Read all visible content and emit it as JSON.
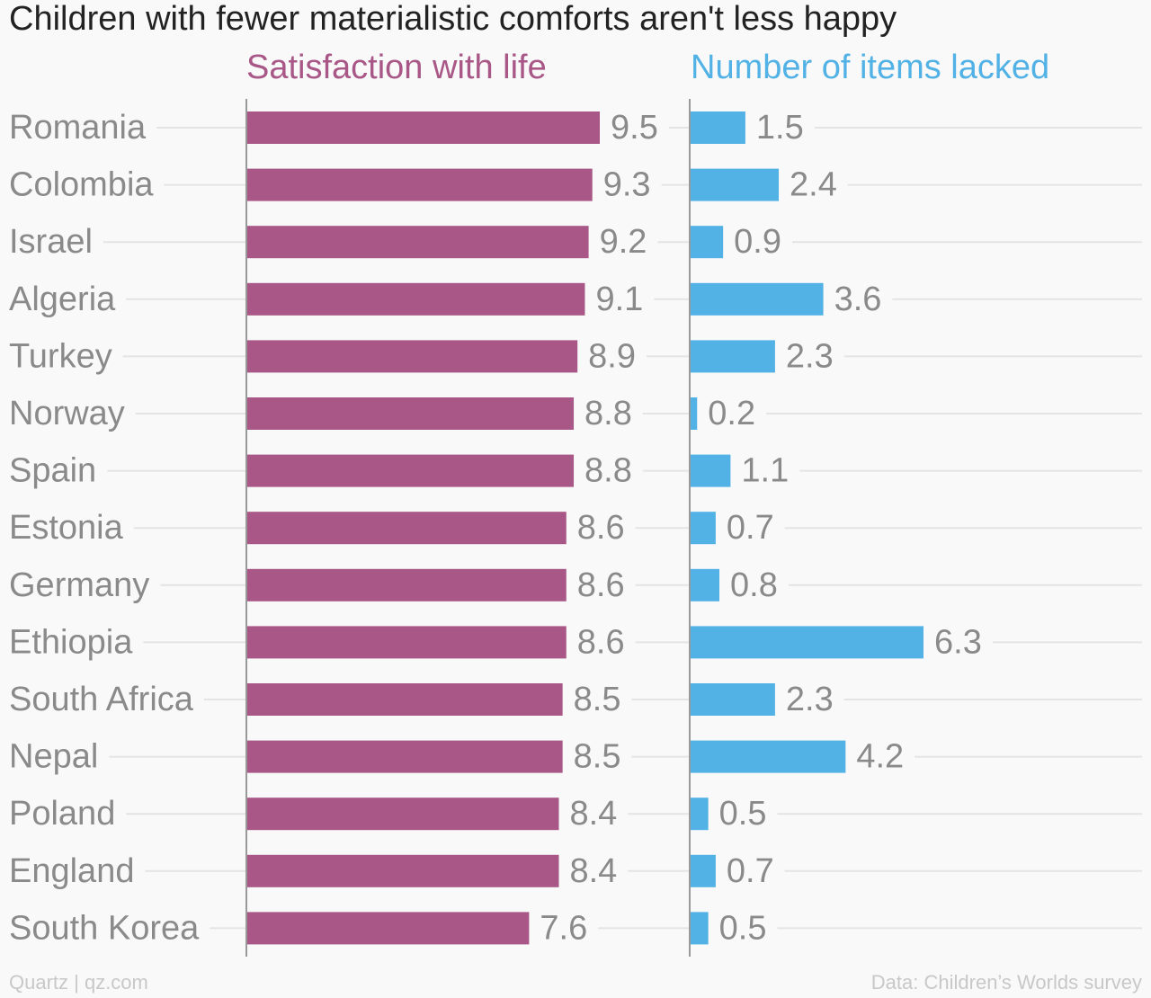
{
  "chart_data": {
    "type": "bar",
    "title": "Children with fewer materialistic comforts aren't less happy",
    "categories": [
      "Romania",
      "Colombia",
      "Israel",
      "Algeria",
      "Turkey",
      "Norway",
      "Spain",
      "Estonia",
      "Germany",
      "Ethiopia",
      "South Africa",
      "Nepal",
      "Poland",
      "England",
      "South Korea"
    ],
    "series": [
      {
        "name": "Satisfaction with life",
        "color": "#a85787",
        "values": [
          9.5,
          9.3,
          9.2,
          9.1,
          8.9,
          8.8,
          8.8,
          8.6,
          8.6,
          8.6,
          8.5,
          8.5,
          8.4,
          8.4,
          7.6
        ],
        "labels": [
          "9.5",
          "9.3",
          "9.2",
          "9.1",
          "8.9",
          "8.8",
          "8.8",
          "8.6",
          "8.6",
          "8.6",
          "8.5",
          "8.5",
          "8.4",
          "8.4",
          "7.6"
        ],
        "xlim": [
          0,
          9.5
        ]
      },
      {
        "name": "Number of items lacked",
        "color": "#52b2e5",
        "values": [
          1.5,
          2.4,
          0.9,
          3.6,
          2.3,
          0.2,
          1.1,
          0.7,
          0.8,
          6.3,
          2.3,
          4.2,
          0.5,
          0.7,
          0.5
        ],
        "labels": [
          "1.5",
          "2.4",
          "0.9",
          "3.6",
          "2.3",
          "0.2",
          "1.1",
          "0.7",
          "0.8",
          "6.3",
          "2.3",
          "4.2",
          "0.5",
          "0.7",
          "0.5"
        ],
        "xlim": [
          0,
          6.3
        ]
      }
    ],
    "orientation": "horizontal",
    "grid": true,
    "legend": "none"
  },
  "footer": {
    "left": "Quartz | qz.com",
    "right": "Data: Children’s Worlds survey"
  }
}
